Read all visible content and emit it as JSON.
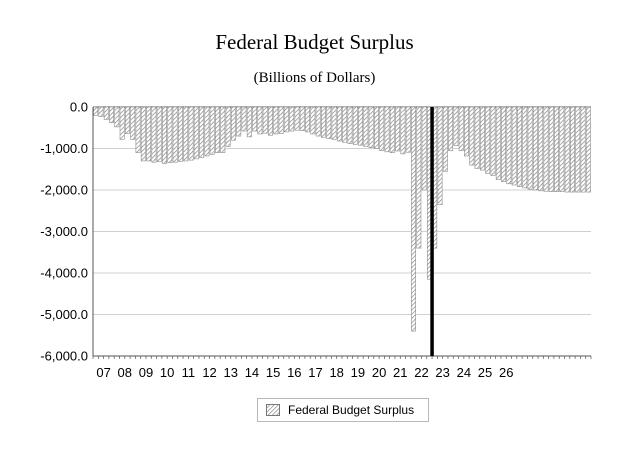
{
  "chart_data": {
    "type": "bar",
    "title": "Federal Budget Surplus",
    "subtitle": "(Billions of Dollars)",
    "xlabel": "",
    "ylabel": "",
    "ylim": [
      -6000,
      0
    ],
    "yticks": [
      0,
      -1000,
      -2000,
      -3000,
      -4000,
      -5000,
      -6000
    ],
    "ytick_labels": [
      "0.0",
      "-1,000.0",
      "-2,000.0",
      "-3,000.0",
      "-4,000.0",
      "-5,000.0",
      "-6,000.0"
    ],
    "x_tick_labels": [
      "07",
      "08",
      "09",
      "10",
      "11",
      "12",
      "13",
      "14",
      "15",
      "16",
      "17",
      "18",
      "19",
      "20",
      "21",
      "22",
      "23",
      "24",
      "25",
      "26"
    ],
    "x_start_year": 2007,
    "periods_per_year": 4,
    "grid": true,
    "forecast_line_at": "23",
    "legend": [
      "Federal Budget Surplus"
    ],
    "legend_position": "bottom-center",
    "series": [
      {
        "name": "Federal Budget Surplus",
        "values": [
          -200,
          -230,
          -300,
          -380,
          -480,
          -780,
          -640,
          -780,
          -1100,
          -1300,
          -1300,
          -1330,
          -1320,
          -1360,
          -1340,
          -1330,
          -1310,
          -1300,
          -1280,
          -1250,
          -1220,
          -1180,
          -1140,
          -1100,
          -1100,
          -950,
          -800,
          -700,
          -580,
          -720,
          -580,
          -650,
          -630,
          -680,
          -650,
          -640,
          -600,
          -580,
          -560,
          -570,
          -600,
          -650,
          -700,
          -730,
          -760,
          -780,
          -820,
          -850,
          -880,
          -900,
          -920,
          -950,
          -980,
          -1000,
          -1050,
          -1080,
          -1100,
          -1060,
          -1130,
          -1090,
          -5400,
          -3400,
          -2000,
          -4150,
          -3400,
          -2350,
          -1550,
          -1050,
          -930,
          -1050,
          -1180,
          -1400,
          -1480,
          -1520,
          -1600,
          -1650,
          -1750,
          -1800,
          -1850,
          -1880,
          -1920,
          -1950,
          -1980,
          -2000,
          -2020,
          -2030,
          -2040,
          -2040,
          -2040,
          -2050,
          -2050,
          -2050,
          -2050,
          -2050
        ]
      }
    ]
  }
}
